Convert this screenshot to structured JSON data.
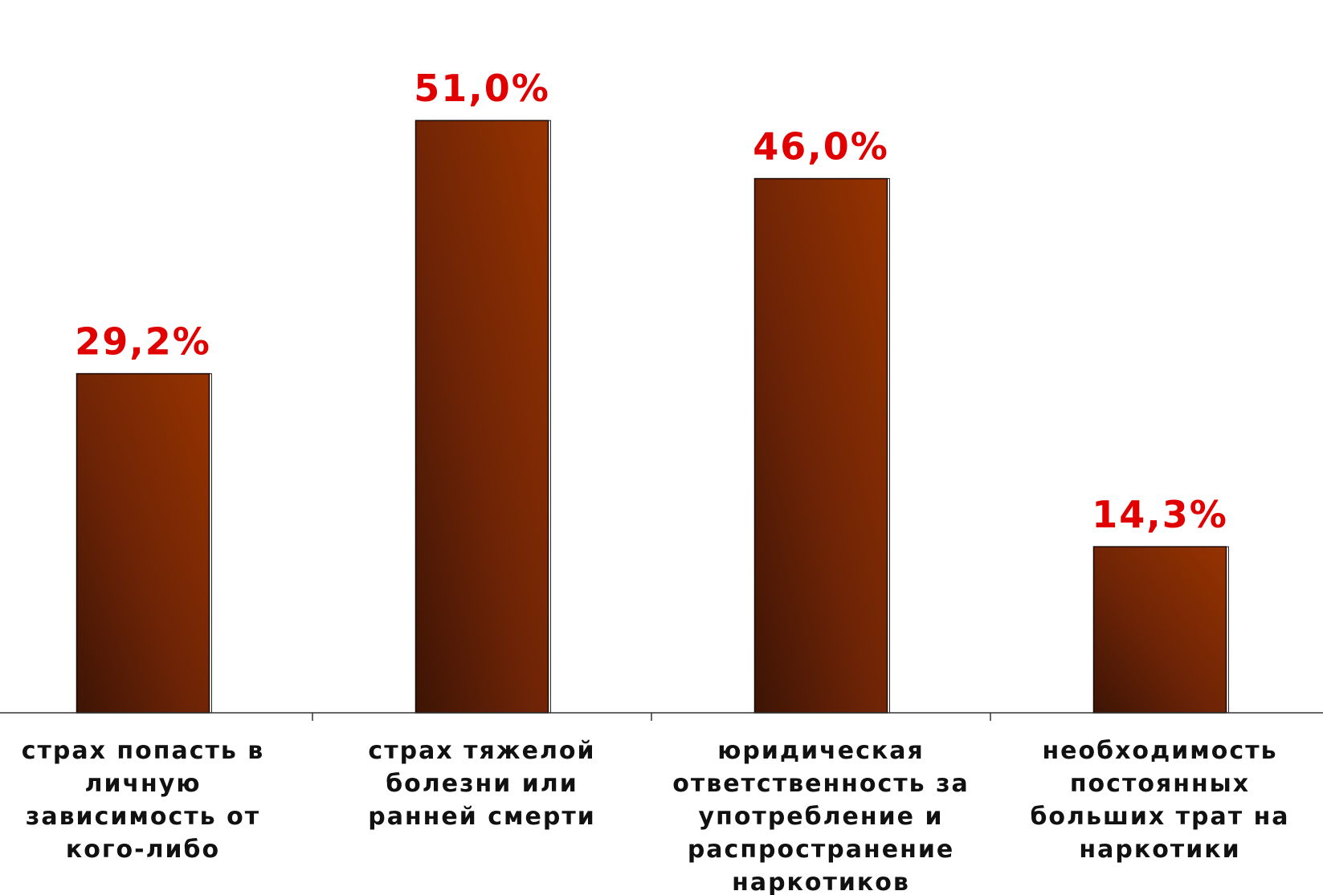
{
  "chart_data": {
    "type": "bar",
    "title": "",
    "xlabel": "",
    "ylabel": "",
    "ylim": [
      0,
      60
    ],
    "grid": false,
    "legend": "none",
    "categories": [
      [
        "страх попасть в",
        "личную",
        "зависимость от",
        "кого-либо"
      ],
      [
        "страх тяжелой",
        "болезни или",
        "ранней смерти"
      ],
      [
        "юридическая",
        "ответственность за",
        "употребление и",
        "распространение",
        "наркотиков"
      ],
      [
        "необходимость",
        "постоянных",
        "больших трат на",
        "наркотики"
      ]
    ],
    "values": [
      29.2,
      51.0,
      46.0,
      14.3
    ],
    "value_labels": [
      "29,2%",
      "51,0%",
      "46,0%",
      "14,3%"
    ]
  },
  "colors": {
    "bar_dark": "#3d1405",
    "bar_mid": "#6e2406",
    "bar_light": "#963300",
    "value_label": "#e00000",
    "axis": "#333333"
  }
}
